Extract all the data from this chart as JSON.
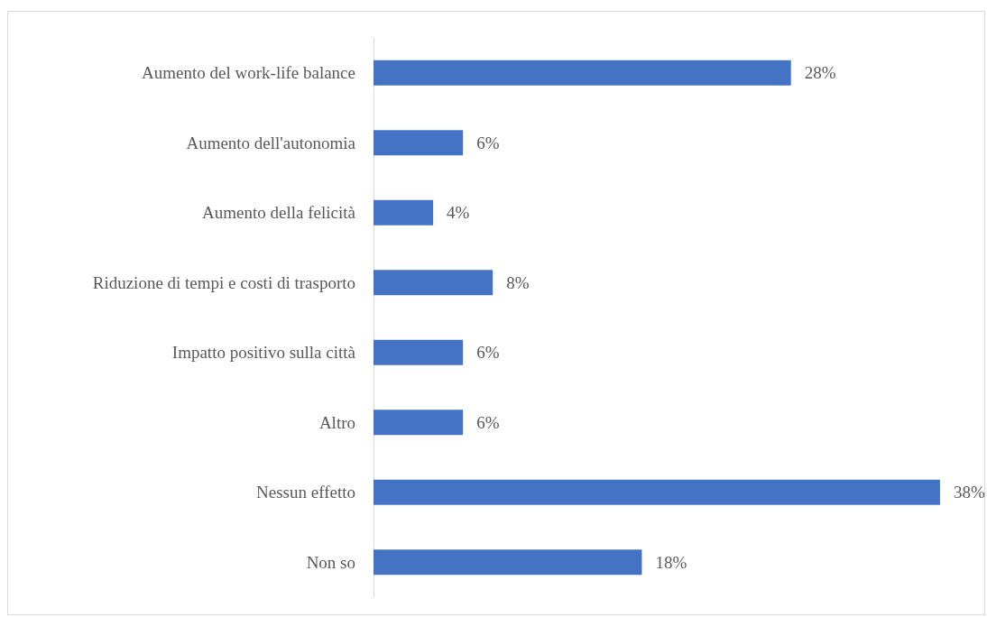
{
  "chart_data": {
    "type": "bar",
    "orientation": "horizontal",
    "categories": [
      "Aumento del work-life balance",
      "Aumento dell'autonomia",
      "Aumento della felicità",
      "Riduzione di tempi e costi di trasporto",
      "Impatto positivo sulla città",
      "Altro",
      "Nessun effetto",
      "Non so"
    ],
    "values": [
      28,
      6,
      4,
      8,
      6,
      6,
      38,
      18
    ],
    "value_labels": [
      "28%",
      "6%",
      "4%",
      "8%",
      "6%",
      "6%",
      "38%",
      "18%"
    ],
    "color": "#4472c4"
  }
}
